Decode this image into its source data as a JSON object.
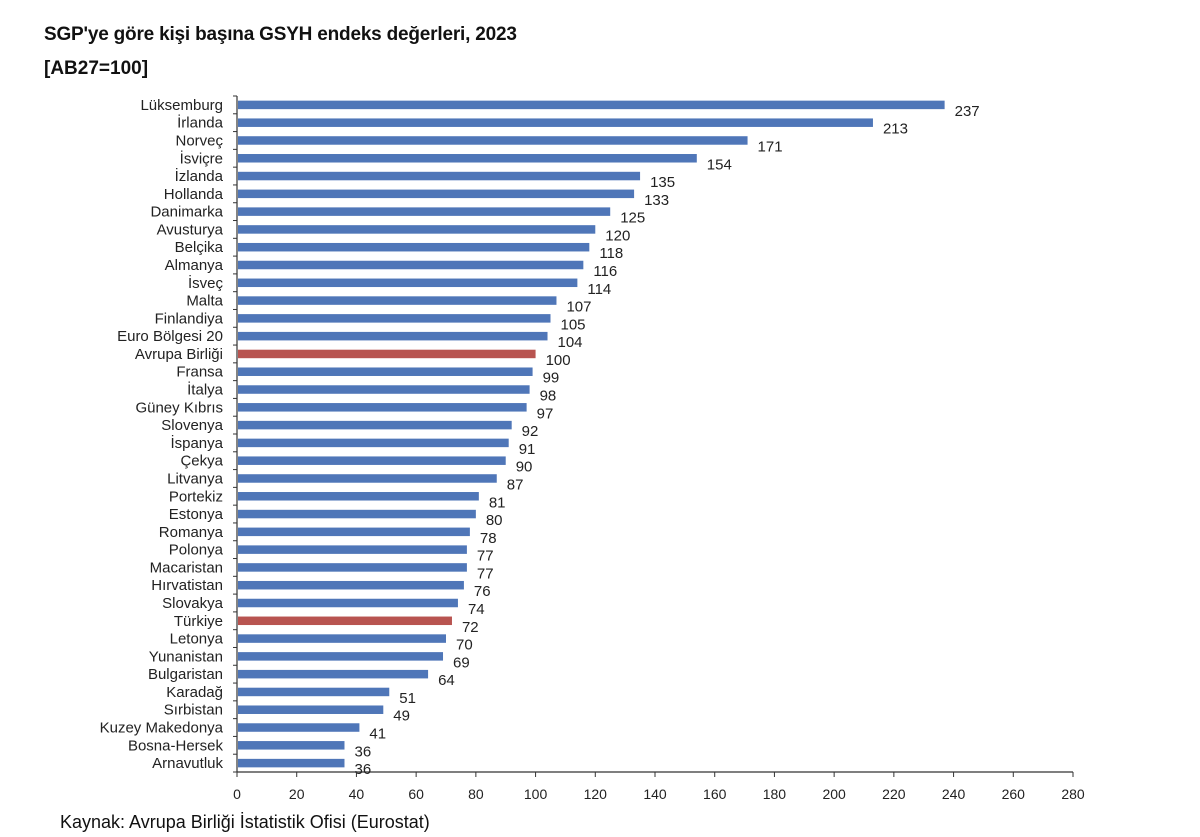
{
  "title": "SGP'ye göre kişi başına GSYH endeks değerleri, 2023",
  "subtitle": "[AB27=100]",
  "source": "Kaynak: Avrupa Birliği İstatistik Ofisi (Eurostat)",
  "colors": {
    "bar": "#4f76b8",
    "highlight": "#b85450",
    "axis": "#333333"
  },
  "chart_data": {
    "type": "bar",
    "orientation": "horizontal",
    "title": "SGP'ye göre kişi başına GSYH endeks değerleri, 2023",
    "subtitle": "[AB27=100]",
    "xlabel": "",
    "ylabel": "",
    "xlim": [
      0,
      280
    ],
    "xticks": [
      0,
      20,
      40,
      60,
      80,
      100,
      120,
      140,
      160,
      180,
      200,
      220,
      240,
      260,
      280
    ],
    "grid": false,
    "categories": [
      "Lüksemburg",
      "İrlanda",
      "Norveç",
      "İsviçre",
      "İzlanda",
      "Hollanda",
      "Danimarka",
      "Avusturya",
      "Belçika",
      "Almanya",
      "İsveç",
      "Malta",
      "Finlandiya",
      "Euro Bölgesi 20",
      "Avrupa Birliği",
      "Fransa",
      "İtalya",
      "Güney Kıbrıs",
      "Slovenya",
      "İspanya",
      "Çekya",
      "Litvanya",
      "Portekiz",
      "Estonya",
      "Romanya",
      "Polonya",
      "Macaristan",
      "Hırvatistan",
      "Slovakya",
      "Türkiye",
      "Letonya",
      "Yunanistan",
      "Bulgaristan",
      "Karadağ",
      "Sırbistan",
      "Kuzey Makedonya",
      "Bosna-Hersek",
      "Arnavutluk"
    ],
    "values": [
      237,
      213,
      171,
      154,
      135,
      133,
      125,
      120,
      118,
      116,
      114,
      107,
      105,
      104,
      100,
      99,
      98,
      97,
      92,
      91,
      90,
      87,
      81,
      80,
      78,
      77,
      77,
      76,
      74,
      72,
      70,
      69,
      64,
      51,
      49,
      41,
      36,
      36
    ],
    "highlighted": [
      "Avrupa Birliği",
      "Türkiye"
    ]
  }
}
